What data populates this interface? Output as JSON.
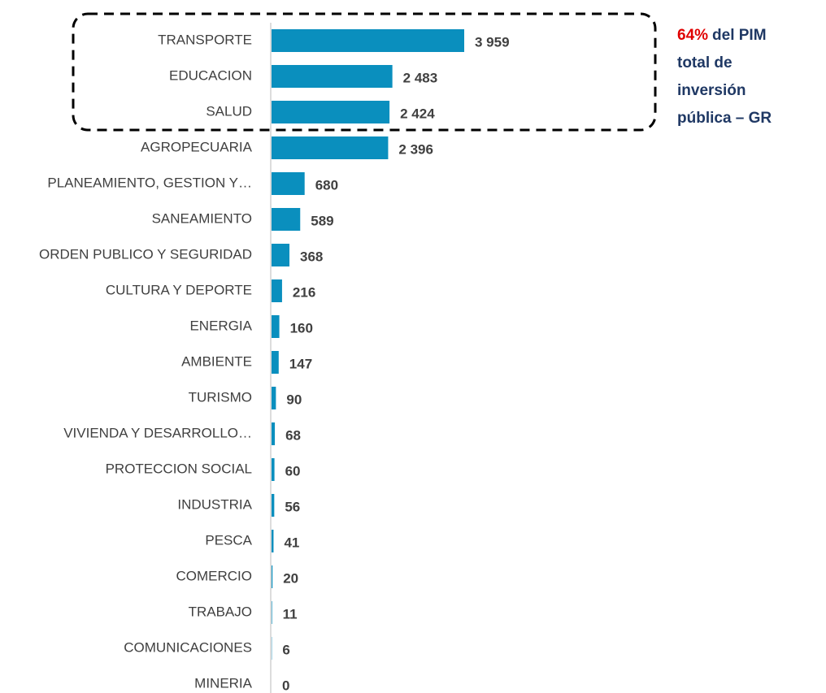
{
  "chart_data": {
    "type": "barh",
    "categories": [
      "TRANSPORTE",
      "EDUCACION",
      "SALUD",
      "AGROPECUARIA",
      "PLANEAMIENTO, GESTION Y…",
      "SANEAMIENTO",
      "ORDEN PUBLICO Y SEGURIDAD",
      "CULTURA Y DEPORTE",
      "ENERGIA",
      "AMBIENTE",
      "TURISMO",
      "VIVIENDA Y DESARROLLO…",
      "PROTECCION SOCIAL",
      "INDUSTRIA",
      "PESCA",
      "COMERCIO",
      "TRABAJO",
      "COMUNICACIONES",
      "MINERIA"
    ],
    "values": [
      3959,
      2483,
      2424,
      2396,
      680,
      589,
      368,
      216,
      160,
      147,
      90,
      68,
      60,
      56,
      41,
      20,
      11,
      6,
      0
    ],
    "value_labels": [
      "3 959",
      "2 483",
      "2 424",
      "2 396",
      "680",
      "589",
      "368",
      "216",
      "160",
      "147",
      "90",
      "68",
      "60",
      "56",
      "41",
      "20",
      "11",
      "6",
      "0"
    ],
    "color": "#0a8fbe",
    "annotation": {
      "highlight": "64%",
      "lines": [
        "del PIM",
        "total de",
        "inversión",
        "pública – GR"
      ]
    }
  }
}
